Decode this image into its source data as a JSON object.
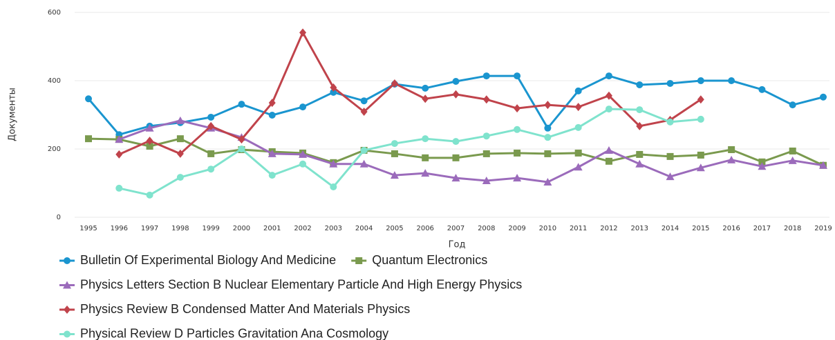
{
  "chart_data": {
    "type": "line",
    "x_label": "Год",
    "y_label": "Документы",
    "categories": [
      "1995",
      "1996",
      "1997",
      "1998",
      "1999",
      "2000",
      "2001",
      "2002",
      "2003",
      "2004",
      "2005",
      "2006",
      "2007",
      "2008",
      "2009",
      "2010",
      "2011",
      "2012",
      "2013",
      "2014",
      "2015",
      "2016",
      "2017",
      "2018",
      "2019"
    ],
    "ylim": [
      0,
      600
    ],
    "yticks": [
      0,
      200,
      400,
      600
    ],
    "grid": true,
    "series": [
      {
        "name": "Bulletin Of Experimental Biology And Medicine",
        "color": "#1a95cf",
        "marker": "circle",
        "values": [
          347,
          242,
          267,
          277,
          293,
          331,
          299,
          323,
          366,
          341,
          390,
          378,
          398,
          414,
          414,
          261,
          370,
          414,
          388,
          392,
          400,
          400,
          374,
          329,
          352
        ]
      },
      {
        "name": "Quantum Electronics",
        "color": "#7a9a4e",
        "marker": "square",
        "values": [
          230,
          228,
          208,
          230,
          186,
          198,
          192,
          188,
          160,
          196,
          186,
          174,
          174,
          186,
          188,
          186,
          188,
          164,
          184,
          178,
          182,
          198,
          162,
          194,
          152
        ]
      },
      {
        "name": "Physics Letters Section B Nuclear Elementary Particle And High Energy Physics",
        "color": "#9b6bbb",
        "marker": "triangle",
        "values": [
          null,
          228,
          261,
          283,
          261,
          234,
          186,
          184,
          156,
          156,
          123,
          129,
          115,
          107,
          115,
          103,
          147,
          196,
          156,
          119,
          145,
          168,
          149,
          166,
          152
        ]
      },
      {
        "name": "Physics Review B Condensed Matter And Materials Physics",
        "color": "#c0434b",
        "marker": "diamond",
        "values": [
          null,
          184,
          224,
          186,
          267,
          228,
          335,
          541,
          380,
          309,
          392,
          347,
          360,
          345,
          319,
          329,
          323,
          356,
          267,
          285,
          345,
          null,
          null,
          null,
          null
        ]
      },
      {
        "name": "Physical Review D Particles Gravitation Ana Cosmology",
        "color": "#7fe3cd",
        "marker": "circle",
        "values": [
          null,
          85,
          65,
          117,
          141,
          200,
          123,
          156,
          89,
          196,
          216,
          230,
          222,
          238,
          257,
          234,
          263,
          317,
          315,
          279,
          287,
          null,
          null,
          null,
          null
        ]
      }
    ]
  }
}
